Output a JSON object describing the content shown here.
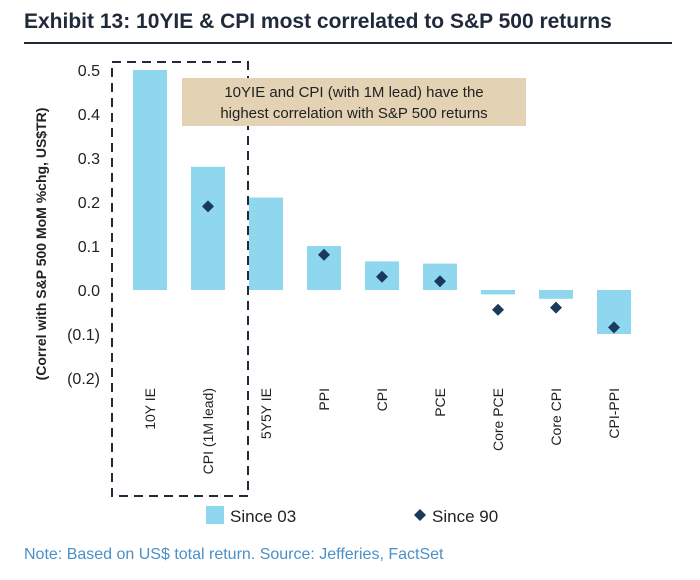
{
  "title": "Exhibit 13: 10YIE & CPI most correlated to S&P 500 returns",
  "note": "Note: Based on US$ total return. Source: Jefferies, FactSet",
  "chart_data": {
    "type": "bar",
    "title": "Exhibit 13: 10YIE & CPI most correlated to S&P 500 returns",
    "ylabel": "(Correl with S&P 500 MoM %chg, US$TR)",
    "xlabel": "",
    "ylim": [
      -0.2,
      0.5
    ],
    "yticks": [
      "0.5",
      "0.4",
      "0.3",
      "0.2",
      "0.1",
      "0.0",
      "(0.1)",
      "(0.2)"
    ],
    "ytick_values": [
      0.5,
      0.4,
      0.3,
      0.2,
      0.1,
      0.0,
      -0.1,
      -0.2
    ],
    "categories": [
      "10Y IE",
      "CPI (1M lead)",
      "5Y5Y IE",
      "PPI",
      "CPI",
      "PCE",
      "Core PCE",
      "Core CPI",
      "CPI-PPI"
    ],
    "series": [
      {
        "name": "Since 03",
        "kind": "bar",
        "color": "#8fd6ef",
        "values": [
          0.5,
          0.28,
          0.21,
          0.1,
          0.065,
          0.06,
          -0.01,
          -0.02,
          -0.1
        ]
      },
      {
        "name": "Since 90",
        "kind": "marker",
        "color": "#1a3a5c",
        "values": [
          null,
          0.19,
          null,
          0.08,
          0.03,
          0.02,
          -0.045,
          -0.04,
          -0.085
        ]
      }
    ],
    "annotation": {
      "lines": [
        "10YIE and CPI (with 1M lead) have the",
        "highest correlation with S&P 500 returns"
      ],
      "color": "#e3d3b4"
    },
    "highlight_categories": [
      "10Y IE",
      "CPI (1M lead)"
    ],
    "legend_position": "bottom",
    "grid": false
  }
}
